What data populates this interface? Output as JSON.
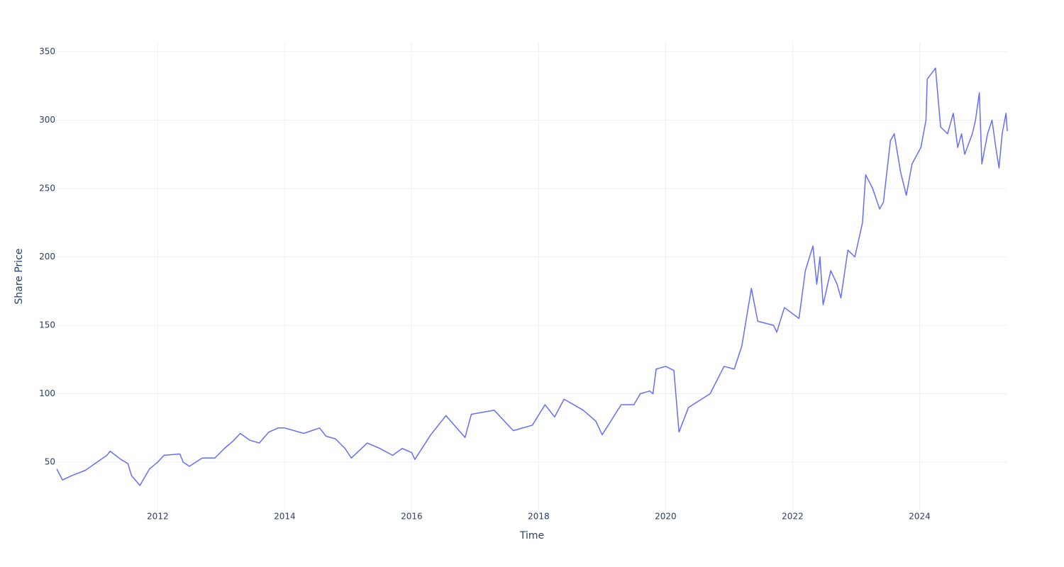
{
  "chart_data": {
    "type": "line",
    "x_label": "Time",
    "y_label": "Share Price",
    "color": "#636efa",
    "grid": true,
    "xlim": [
      2010.41,
      2025.38
    ],
    "ylim": [
      14.8,
      356.7
    ],
    "xticks": [
      2012,
      2014,
      2016,
      2018,
      2020,
      2022,
      2024
    ],
    "yticks": [
      50,
      100,
      150,
      200,
      250,
      300,
      350
    ],
    "x": [
      2010.41,
      2010.5,
      2010.64,
      2010.86,
      2011.2,
      2011.25,
      2011.42,
      2011.53,
      2011.59,
      2011.72,
      2011.87,
      2012.0,
      2012.1,
      2012.35,
      2012.4,
      2012.5,
      2012.7,
      2012.9,
      2013.05,
      2013.2,
      2013.3,
      2013.45,
      2013.6,
      2013.75,
      2013.9,
      2014.0,
      2014.3,
      2014.55,
      2014.65,
      2014.8,
      2014.95,
      2015.05,
      2015.3,
      2015.5,
      2015.7,
      2015.85,
      2016.0,
      2016.05,
      2016.3,
      2016.54,
      2016.84,
      2016.94,
      2017.3,
      2017.6,
      2017.9,
      2018.1,
      2018.25,
      2018.4,
      2018.7,
      2018.9,
      2019.0,
      2019.3,
      2019.5,
      2019.6,
      2019.75,
      2019.8,
      2019.85,
      2020.0,
      2020.13,
      2020.21,
      2020.36,
      2020.7,
      2020.92,
      2021.08,
      2021.2,
      2021.35,
      2021.45,
      2021.7,
      2021.75,
      2021.87,
      2022.1,
      2022.2,
      2022.32,
      2022.38,
      2022.43,
      2022.48,
      2022.6,
      2022.7,
      2022.76,
      2022.87,
      2022.98,
      2023.1,
      2023.15,
      2023.26,
      2023.37,
      2023.43,
      2023.54,
      2023.6,
      2023.7,
      2023.79,
      2023.88,
      2024.02,
      2024.1,
      2024.12,
      2024.25,
      2024.33,
      2024.44,
      2024.53,
      2024.6,
      2024.66,
      2024.71,
      2024.83,
      2024.88,
      2024.94,
      2024.98,
      2025.07,
      2025.14,
      2025.2,
      2025.25,
      2025.3,
      2025.36,
      2025.38
    ],
    "values": [
      45,
      37,
      40,
      44,
      55,
      58,
      52,
      49,
      40,
      33,
      45,
      50,
      55,
      56,
      50,
      47,
      53,
      53,
      60,
      66,
      71,
      66,
      64,
      72,
      75,
      75,
      71,
      75,
      69,
      67,
      60,
      53,
      64,
      60,
      55,
      60,
      57,
      52,
      70,
      84,
      68,
      85,
      88,
      73,
      77,
      92,
      83,
      96,
      88,
      80,
      70,
      92,
      92,
      100,
      102,
      100,
      118,
      120,
      117,
      72,
      90,
      100,
      120,
      118,
      135,
      177,
      153,
      150,
      145,
      163,
      155,
      190,
      208,
      180,
      200,
      165,
      190,
      180,
      170,
      205,
      200,
      225,
      260,
      250,
      235,
      240,
      285,
      290,
      262,
      245,
      268,
      280,
      300,
      330,
      338,
      295,
      290,
      305,
      280,
      290,
      275,
      290,
      300,
      320,
      268,
      290,
      300,
      280,
      265,
      290,
      305,
      292
    ]
  }
}
